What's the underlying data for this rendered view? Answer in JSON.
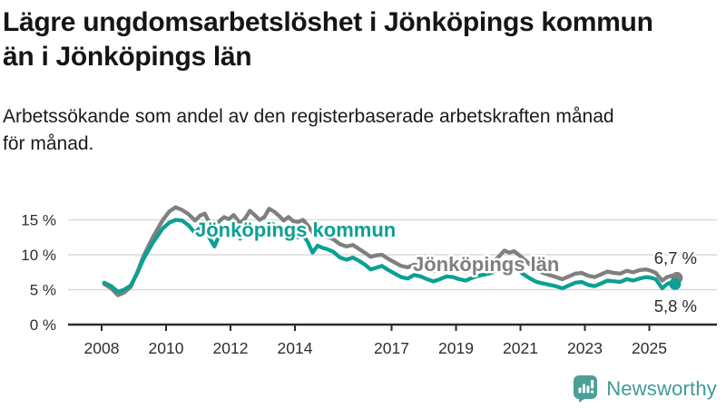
{
  "title": "Lägre ungdomsarbetslöshet i Jönköpings kommun\nän i Jönköpings län",
  "subtitle": "Arbetssökande som andel av den registerbaserade arbetskraften månad\nför månad.",
  "branding": {
    "name": "Newsworthy",
    "icon": "newsworthy-speech-bubble-bar-chart-icon",
    "color": "#3D9C94",
    "icon_color": "#4AA096"
  },
  "colors": {
    "kommun_line": "#0CA094",
    "lan_line": "#7F7F7F",
    "axis_text": "#2E2E2E",
    "grid": "#D9D9D9",
    "axis_line": "#2B2B2B",
    "end_label_text": "#2B2B2B"
  },
  "chart_data": {
    "type": "line",
    "title": "Lägre ungdomsarbetslöshet i Jönköpings kommun än i Jönköpings län",
    "subtitle": "Arbetssökande som andel av den registerbaserade arbetskraften månad för månad.",
    "unit": "%",
    "grid": "horizontal",
    "legend_position": "inline-labels",
    "xlim": [
      2007.9,
      2026.2
    ],
    "ylim": [
      0,
      18.5
    ],
    "x_axis": {
      "tick_years": [
        2008,
        2010,
        2012,
        2014,
        2017,
        2019,
        2021,
        2023,
        2025
      ],
      "tick_labels": [
        "2008",
        "2010",
        "2012",
        "2014",
        "2017",
        "2019",
        "2021",
        "2023",
        "2025"
      ]
    },
    "y_axis": {
      "tick_values": [
        0,
        5,
        10,
        15
      ],
      "tick_labels": [
        "0 %",
        "5 %",
        "10 %",
        "15 %"
      ]
    },
    "x": [
      2008.08,
      2008.3,
      2008.5,
      2008.7,
      2008.9,
      2009.1,
      2009.3,
      2009.6,
      2009.9,
      2010.1,
      2010.3,
      2010.5,
      2010.7,
      2010.9,
      2011.05,
      2011.2,
      2011.35,
      2011.5,
      2011.65,
      2011.8,
      2011.95,
      2012.1,
      2012.3,
      2012.45,
      2012.6,
      2012.75,
      2012.9,
      2013.05,
      2013.2,
      2013.35,
      2013.5,
      2013.65,
      2013.8,
      2013.95,
      2014.1,
      2014.25,
      2014.4,
      2014.55,
      2014.7,
      2014.85,
      2015.0,
      2015.2,
      2015.4,
      2015.6,
      2015.8,
      2016.0,
      2016.2,
      2016.35,
      2016.5,
      2016.7,
      2016.9,
      2017.1,
      2017.3,
      2017.5,
      2017.7,
      2017.9,
      2018.1,
      2018.3,
      2018.5,
      2018.7,
      2018.9,
      2019.1,
      2019.3,
      2019.5,
      2019.7,
      2019.9,
      2020.1,
      2020.3,
      2020.5,
      2020.65,
      2020.8,
      2020.95,
      2021.1,
      2021.3,
      2021.5,
      2021.7,
      2021.9,
      2022.1,
      2022.3,
      2022.5,
      2022.7,
      2022.9,
      2023.1,
      2023.3,
      2023.5,
      2023.7,
      2023.9,
      2024.1,
      2024.3,
      2024.5,
      2024.7,
      2024.9,
      2025.05,
      2025.2,
      2025.4,
      2025.55,
      2025.7,
      2025.8
    ],
    "series": [
      {
        "name": "Jönköpings län",
        "color": "#7F7F7F",
        "end_label": "6,7 %",
        "end_value": 6.7,
        "values": [
          5.8,
          5.2,
          4.2,
          4.6,
          5.4,
          7.4,
          9.8,
          12.6,
          15.0,
          16.2,
          16.8,
          16.4,
          15.8,
          14.9,
          15.6,
          15.9,
          14.6,
          13.7,
          14.8,
          15.4,
          15.1,
          15.7,
          14.5,
          15.2,
          16.3,
          15.7,
          15.0,
          15.4,
          16.6,
          16.2,
          15.6,
          14.9,
          15.4,
          14.8,
          14.7,
          15.0,
          14.2,
          13.2,
          13.5,
          13.0,
          12.6,
          12.2,
          11.5,
          11.2,
          11.4,
          10.8,
          10.2,
          9.7,
          9.9,
          10.0,
          9.4,
          8.9,
          8.4,
          8.2,
          8.6,
          8.4,
          8.0,
          7.7,
          7.9,
          8.2,
          8.1,
          7.8,
          7.6,
          7.9,
          8.2,
          8.4,
          8.7,
          9.6,
          10.6,
          10.3,
          10.5,
          10.0,
          9.4,
          8.6,
          7.8,
          7.4,
          7.1,
          6.8,
          6.5,
          6.9,
          7.3,
          7.4,
          7.0,
          6.8,
          7.2,
          7.6,
          7.4,
          7.3,
          7.7,
          7.5,
          7.8,
          7.9,
          7.7,
          7.4,
          6.3,
          6.8,
          7.0,
          6.7
        ]
      },
      {
        "name": "Jönköpings kommun",
        "color": "#0CA094",
        "end_label": "5,8 %",
        "end_value": 5.8,
        "values": [
          6.0,
          5.5,
          4.7,
          5.0,
          5.6,
          7.3,
          9.4,
          11.8,
          13.8,
          14.6,
          15.0,
          14.9,
          14.2,
          13.1,
          13.9,
          14.1,
          12.4,
          11.2,
          12.8,
          13.5,
          13.3,
          13.9,
          12.3,
          13.3,
          14.4,
          13.6,
          12.8,
          13.3,
          14.7,
          14.3,
          13.5,
          12.6,
          13.2,
          12.6,
          12.5,
          12.9,
          11.8,
          10.3,
          11.3,
          11.0,
          10.8,
          10.4,
          9.6,
          9.3,
          9.6,
          9.1,
          8.5,
          7.9,
          8.1,
          8.4,
          7.8,
          7.3,
          6.8,
          6.6,
          7.1,
          6.9,
          6.5,
          6.2,
          6.5,
          6.9,
          6.8,
          6.5,
          6.3,
          6.7,
          7.0,
          7.2,
          7.4,
          7.9,
          8.3,
          7.9,
          8.1,
          7.7,
          7.2,
          6.6,
          6.1,
          5.9,
          5.7,
          5.5,
          5.2,
          5.6,
          6.0,
          6.1,
          5.7,
          5.5,
          5.9,
          6.3,
          6.2,
          6.1,
          6.5,
          6.3,
          6.6,
          6.8,
          6.7,
          6.5,
          5.2,
          5.8,
          6.1,
          5.8
        ]
      }
    ]
  }
}
